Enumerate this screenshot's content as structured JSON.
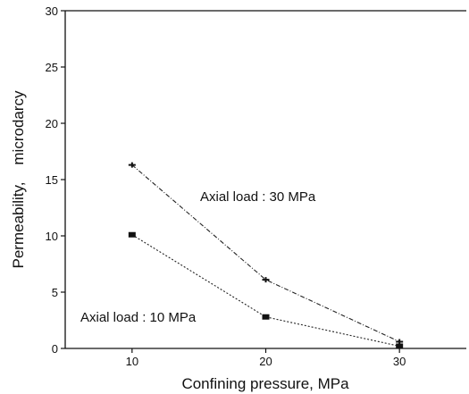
{
  "chart_data": {
    "type": "line",
    "xlabel": "Confining pressure, MPa",
    "ylabel": "Permeability,    microdarcy",
    "xlim": [
      5,
      35
    ],
    "ylim": [
      0,
      30
    ],
    "xticks": [
      10,
      20,
      30
    ],
    "yticks": [
      0,
      5,
      10,
      15,
      20,
      25,
      30
    ],
    "grid": false,
    "series": [
      {
        "name": "Axial load : 30 MPa",
        "marker": "cross",
        "line_style": "dash-dot",
        "x": [
          10,
          20,
          30
        ],
        "y": [
          16.3,
          6.1,
          0.6
        ]
      },
      {
        "name": "Axial load : 10 MPa",
        "marker": "square",
        "line_style": "dotted",
        "x": [
          10,
          20,
          30
        ],
        "y": [
          10.1,
          2.8,
          0.2
        ]
      }
    ]
  }
}
